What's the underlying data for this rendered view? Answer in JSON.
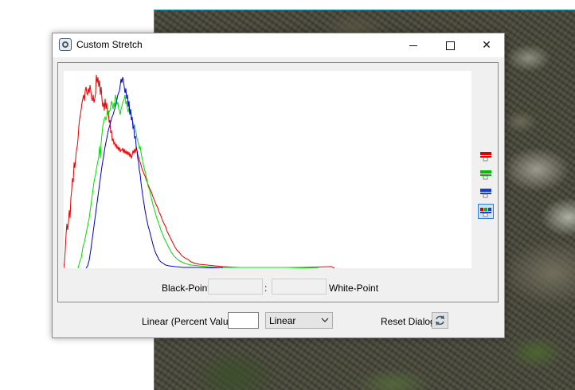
{
  "window": {
    "title": "Custom Stretch",
    "controls": {
      "minimize": "minimize-icon",
      "maximize": "maximize-icon",
      "close": "close-icon"
    }
  },
  "histogram": {
    "channels": [
      {
        "name": "red",
        "color": "#e00000"
      },
      {
        "name": "green",
        "color": "#00dd00"
      },
      {
        "name": "blue",
        "color": "#0000cc"
      }
    ],
    "channel_buttons": [
      "red-channel-icon",
      "green-channel-icon",
      "blue-channel-icon",
      "all-channels-icon"
    ],
    "selected_channel_button": "all-channels-icon"
  },
  "points": {
    "black_label": "Black-Point",
    "separator": ":",
    "white_label": "White-Point",
    "black_value": "",
    "white_value": ""
  },
  "stretch": {
    "percent_label": "Linear (Percent Value)",
    "percent_value": "",
    "type_selected": "Linear",
    "reset_label": "Reset Dialog"
  }
}
